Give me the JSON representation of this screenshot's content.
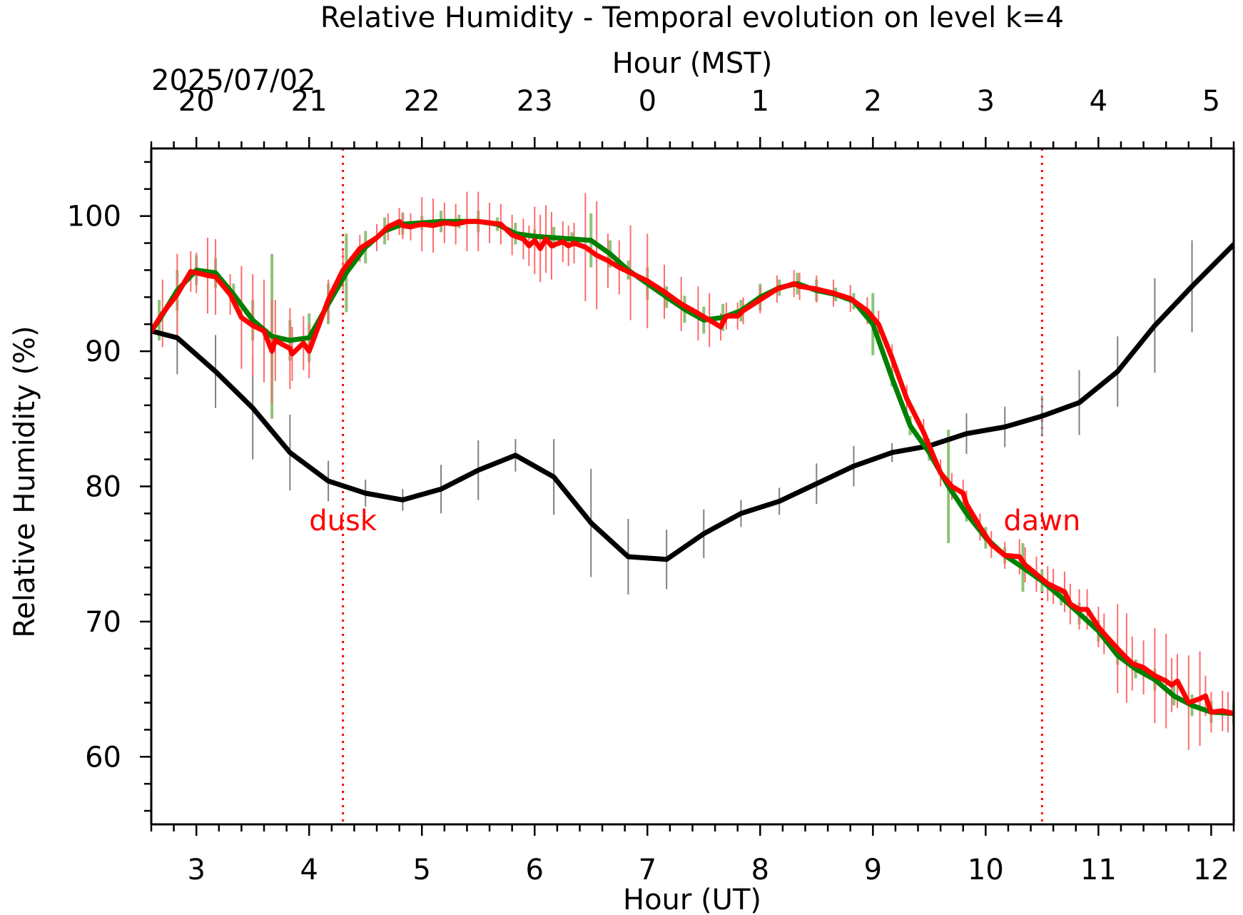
{
  "chart_data": {
    "type": "line",
    "title": "Relative Humidity - Temporal evolution on level k=4",
    "xlabel": "Hour (UT)",
    "top_xlabel": "Hour (MST)",
    "date_label": "2025/07/02",
    "ylabel": "Relative Humidity (%)",
    "xlim": [
      2.6,
      12.2
    ],
    "ylim": [
      55,
      105
    ],
    "x_ticks": [
      3,
      4,
      5,
      6,
      7,
      8,
      9,
      10,
      11,
      12
    ],
    "y_ticks": [
      60,
      70,
      80,
      90,
      100
    ],
    "top_ticks": [
      {
        "x": 3,
        "label": "20"
      },
      {
        "x": 4,
        "label": "21"
      },
      {
        "x": 5,
        "label": "22"
      },
      {
        "x": 6,
        "label": "23"
      },
      {
        "x": 7,
        "label": "0"
      },
      {
        "x": 8,
        "label": "1"
      },
      {
        "x": 9,
        "label": "2"
      },
      {
        "x": 10,
        "label": "3"
      },
      {
        "x": 11,
        "label": "4"
      },
      {
        "x": 12,
        "label": "5"
      }
    ],
    "grid": false,
    "markers": [
      {
        "label": "dusk",
        "x": 4.3,
        "color": "#ff0000"
      },
      {
        "label": "dawn",
        "x": 10.5,
        "color": "#ff0000"
      }
    ],
    "series": [
      {
        "color": "#000000",
        "error_color": "#808080",
        "x": [
          2.6,
          2.83,
          3.17,
          3.5,
          3.83,
          4.17,
          4.5,
          4.83,
          5.17,
          5.5,
          5.83,
          6.17,
          6.5,
          6.83,
          7.17,
          7.5,
          7.83,
          8.17,
          8.5,
          8.83,
          9.17,
          9.5,
          9.83,
          10.17,
          10.5,
          10.83,
          11.17,
          11.5,
          11.83,
          12.2
        ],
        "y": [
          91.5,
          91.0,
          88.5,
          85.8,
          82.5,
          80.4,
          79.5,
          79.0,
          79.8,
          81.2,
          82.3,
          80.7,
          77.3,
          74.8,
          74.6,
          76.5,
          78.0,
          78.9,
          80.2,
          81.5,
          82.5,
          83.0,
          83.9,
          84.4,
          85.2,
          86.2,
          88.5,
          91.9,
          94.8,
          97.9
        ],
        "err": [
          0,
          2.7,
          2.7,
          3.8,
          2.8,
          1.5,
          1.0,
          0.8,
          1.8,
          2.2,
          1.2,
          2.8,
          4.0,
          2.8,
          2.2,
          1.8,
          1.0,
          1.0,
          1.5,
          1.5,
          0.7,
          0.5,
          1.5,
          1.5,
          1.5,
          2.4,
          2.6,
          3.5,
          3.4,
          1.8
        ]
      },
      {
        "color": "#008000",
        "error_color": "#8fc27a",
        "x": [
          2.6,
          2.67,
          2.83,
          3.0,
          3.17,
          3.33,
          3.5,
          3.67,
          3.83,
          4.0,
          4.17,
          4.33,
          4.5,
          4.67,
          4.83,
          5.0,
          5.17,
          5.33,
          5.5,
          5.67,
          5.83,
          6.0,
          6.17,
          6.33,
          6.5,
          6.67,
          6.83,
          7.0,
          7.17,
          7.33,
          7.5,
          7.67,
          7.83,
          8.0,
          8.17,
          8.33,
          8.5,
          8.67,
          8.83,
          9.0,
          9.17,
          9.33,
          9.5,
          9.67,
          9.83,
          10.0,
          10.17,
          10.33,
          10.5,
          10.67,
          10.83,
          11.0,
          11.17,
          11.33,
          11.5,
          11.67,
          11.83,
          12.0,
          12.2
        ],
        "y": [
          91.5,
          92.3,
          94.5,
          96.0,
          95.8,
          94.2,
          92.3,
          91.1,
          90.8,
          91.0,
          93.5,
          95.8,
          97.7,
          98.9,
          99.4,
          99.5,
          99.6,
          99.6,
          99.6,
          99.4,
          98.7,
          98.5,
          98.4,
          98.3,
          98.2,
          97.2,
          96.0,
          95.0,
          94.0,
          93.1,
          92.3,
          92.5,
          93.0,
          94.0,
          94.7,
          95.0,
          94.5,
          94.2,
          93.7,
          92.0,
          88.0,
          84.5,
          82.5,
          80.0,
          78.0,
          76.2,
          74.9,
          74.0,
          73.0,
          71.8,
          70.6,
          69.3,
          67.5,
          66.5,
          65.7,
          64.5,
          63.8,
          63.3,
          63.2
        ],
        "err": [
          0,
          1.5,
          1.5,
          1.1,
          1.1,
          0.8,
          1.5,
          6.1,
          1.5,
          1.8,
          1.5,
          2.9,
          1.2,
          1.0,
          0.8,
          0.5,
          0.8,
          0.5,
          0.8,
          0.5,
          0.8,
          0.5,
          0.8,
          0.5,
          2.0,
          1.0,
          0.7,
          1.2,
          0.8,
          1.0,
          1.0,
          1.0,
          0.8,
          1.0,
          0.6,
          0.8,
          0.8,
          0.5,
          0.6,
          2.3,
          0.6,
          0.7,
          0.6,
          4.2,
          0.6,
          0.8,
          0.6,
          1.8,
          0.8,
          0.6,
          0.8,
          0.8,
          0.7,
          0.7,
          0.8,
          0.7,
          0.8,
          0.8,
          0.8
        ]
      },
      {
        "color": "#ff0000",
        "error_color": "#ff6b6b",
        "x": [
          2.6,
          2.7,
          2.83,
          2.95,
          3.0,
          3.1,
          3.17,
          3.3,
          3.4,
          3.5,
          3.6,
          3.67,
          3.7,
          3.83,
          3.85,
          3.95,
          4.0,
          4.17,
          4.3,
          4.45,
          4.6,
          4.7,
          4.8,
          4.83,
          4.9,
          5.0,
          5.1,
          5.2,
          5.3,
          5.4,
          5.5,
          5.6,
          5.7,
          5.8,
          5.9,
          5.95,
          6.0,
          6.05,
          6.1,
          6.15,
          6.25,
          6.3,
          6.35,
          6.45,
          6.55,
          6.65,
          6.75,
          6.85,
          7.0,
          7.15,
          7.3,
          7.45,
          7.55,
          7.65,
          7.7,
          7.8,
          7.85,
          8.0,
          8.15,
          8.3,
          8.35,
          8.5,
          8.65,
          8.8,
          8.95,
          9.05,
          9.17,
          9.3,
          9.45,
          9.6,
          9.7,
          9.8,
          9.83,
          9.95,
          10.05,
          10.17,
          10.3,
          10.35,
          10.45,
          10.55,
          10.6,
          10.7,
          10.75,
          10.83,
          10.9,
          11.0,
          11.05,
          11.17,
          11.25,
          11.3,
          11.4,
          11.5,
          11.6,
          11.65,
          11.7,
          11.8,
          11.9,
          11.95,
          12.0,
          12.1,
          12.15,
          12.2
        ],
        "y": [
          91.5,
          92.8,
          94.2,
          95.9,
          95.8,
          95.6,
          95.5,
          94.2,
          92.5,
          91.9,
          91.5,
          90.0,
          90.8,
          90.2,
          89.8,
          90.6,
          90.0,
          93.8,
          96.0,
          97.6,
          98.4,
          99.2,
          99.6,
          99.3,
          99.2,
          99.4,
          99.3,
          99.5,
          99.4,
          99.6,
          99.6,
          99.5,
          99.4,
          98.6,
          98.3,
          97.8,
          98.2,
          97.6,
          98.3,
          97.8,
          98.1,
          97.8,
          98.0,
          97.7,
          97.1,
          96.7,
          96.2,
          95.8,
          95.2,
          94.4,
          93.5,
          92.8,
          92.3,
          91.8,
          92.6,
          92.6,
          93.0,
          93.8,
          94.6,
          95.0,
          94.8,
          94.6,
          94.3,
          93.9,
          93.0,
          92.0,
          89.5,
          86.5,
          84.0,
          81.0,
          80.0,
          79.5,
          78.7,
          77.0,
          75.7,
          74.9,
          74.8,
          74.2,
          73.5,
          72.8,
          72.6,
          72.2,
          71.3,
          70.9,
          70.9,
          69.6,
          69.1,
          68.0,
          67.3,
          66.9,
          66.6,
          66.0,
          65.6,
          65.3,
          65.6,
          64.0,
          64.3,
          64.5,
          63.3,
          63.4,
          63.3,
          63.2
        ],
        "err": [
          0,
          2.5,
          3.0,
          1.5,
          1.5,
          2.8,
          2.8,
          1.5,
          3.8,
          3.8,
          3.8,
          3.8,
          3.0,
          3.0,
          2.0,
          2.0,
          2.0,
          1.5,
          1.5,
          1.0,
          1.0,
          1.0,
          1.0,
          1.0,
          1.0,
          2.0,
          2.0,
          1.5,
          1.5,
          2.2,
          2.2,
          1.5,
          1.5,
          1.5,
          1.5,
          1.5,
          2.5,
          2.5,
          2.5,
          2.5,
          1.5,
          1.5,
          1.5,
          4.0,
          4.0,
          2.0,
          2.0,
          3.5,
          3.5,
          2.0,
          2.0,
          2.0,
          2.0,
          1.0,
          1.0,
          1.0,
          1.0,
          1.0,
          1.0,
          1.0,
          1.0,
          1.0,
          1.0,
          1.0,
          1.0,
          1.0,
          1.0,
          1.0,
          1.0,
          1.0,
          1.0,
          1.0,
          1.0,
          1.0,
          1.0,
          1.0,
          1.3,
          1.3,
          1.3,
          1.3,
          1.3,
          1.5,
          1.5,
          1.5,
          1.5,
          1.5,
          1.5,
          3.3,
          3.3,
          2.0,
          2.0,
          3.5,
          3.5,
          2.0,
          2.0,
          3.5,
          3.5,
          1.5,
          1.5,
          1.5,
          1.5,
          1.7
        ]
      }
    ]
  }
}
